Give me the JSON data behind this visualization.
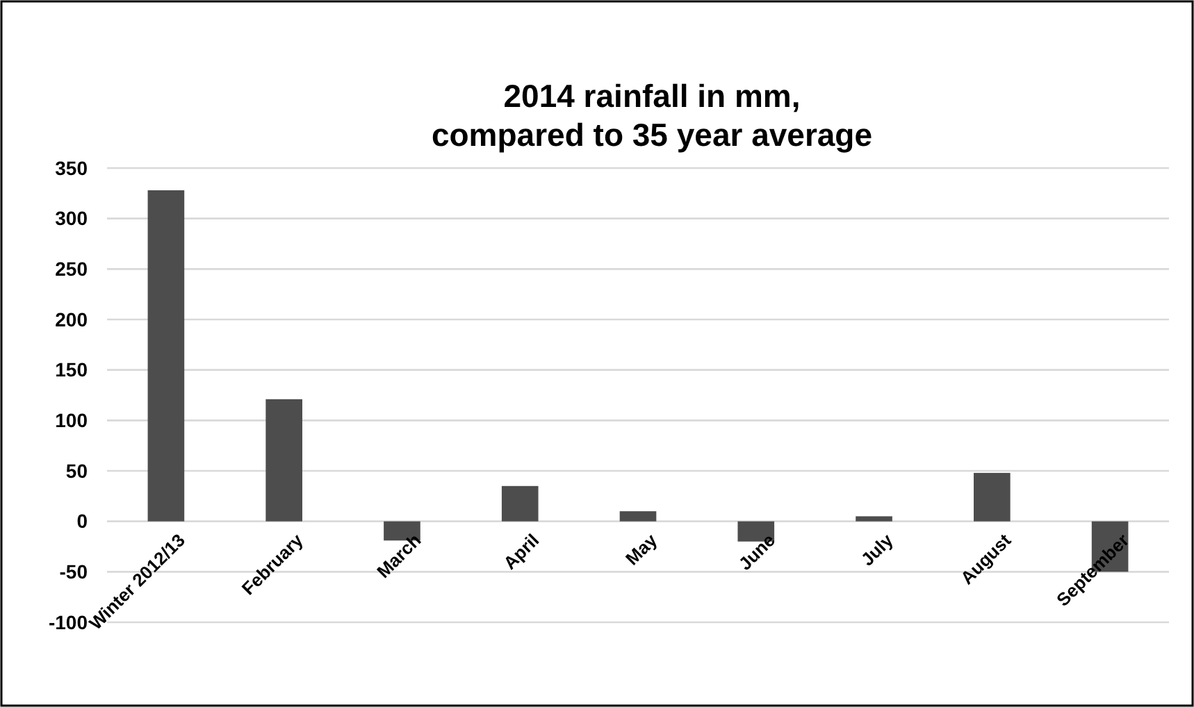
{
  "chart_data": {
    "type": "bar",
    "title": "2014 rainfall in mm,\ncompared to 35 year average",
    "categories": [
      "Winter 2012/13",
      "February",
      "March",
      "April",
      "May",
      "June",
      "July",
      "August",
      "September"
    ],
    "values": [
      328,
      121,
      -19,
      35,
      10,
      -20,
      5,
      48,
      -50
    ],
    "color": "#4d4d4d",
    "ylim": [
      -100,
      350
    ],
    "yticks": [
      -100,
      -50,
      0,
      50,
      100,
      150,
      200,
      250,
      300,
      350
    ],
    "grid": "y"
  }
}
